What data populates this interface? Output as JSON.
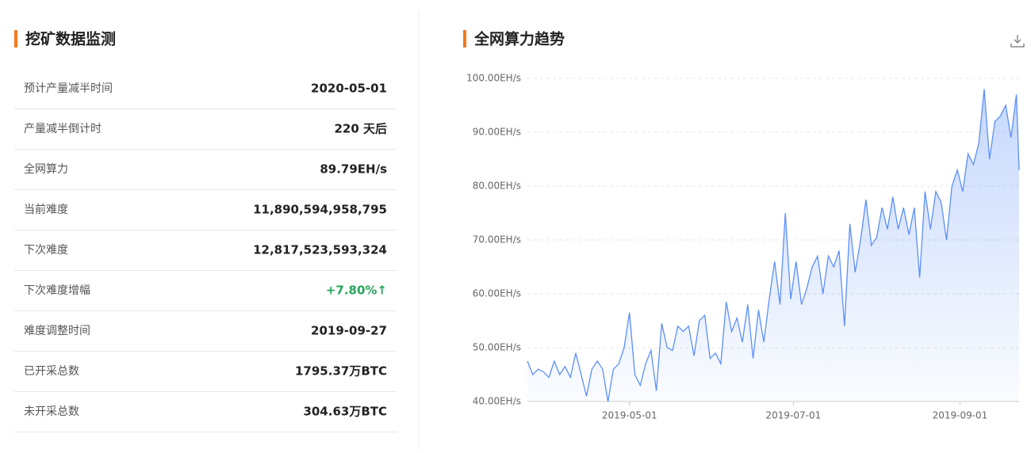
{
  "panel": {
    "title": "挖矿数据监测",
    "rows": [
      [
        "预计产量减半时间",
        "2020-05-01"
      ],
      [
        "产量减半倒计时",
        "220 天后"
      ],
      [
        "全网算力",
        "89.79EH/s"
      ],
      [
        "当前难度",
        "11,890,594,958,795"
      ],
      [
        "下次难度",
        "12,817,523,593,324"
      ],
      [
        "下次难度增幅",
        "+7.80%↑"
      ],
      [
        "难度调整时间",
        "2019-09-27"
      ],
      [
        "已开采总数",
        "1795.37万BTC"
      ],
      [
        "未开采总数",
        "304.63万BTC"
      ]
    ]
  },
  "chart_data": {
    "type": "area",
    "title": "全网算力趋势",
    "color": "#5b8ff9",
    "grid": true,
    "x": [
      "2019-03-24",
      "2019-03-26",
      "2019-03-28",
      "2019-03-30",
      "2019-04-01",
      "2019-04-03",
      "2019-04-05",
      "2019-04-07",
      "2019-04-09",
      "2019-04-11",
      "2019-04-13",
      "2019-04-15",
      "2019-04-17",
      "2019-04-19",
      "2019-04-21",
      "2019-04-23",
      "2019-04-25",
      "2019-04-27",
      "2019-04-29",
      "2019-05-01",
      "2019-05-03",
      "2019-05-05",
      "2019-05-07",
      "2019-05-09",
      "2019-05-11",
      "2019-05-13",
      "2019-05-15",
      "2019-05-17",
      "2019-05-19",
      "2019-05-21",
      "2019-05-23",
      "2019-05-25",
      "2019-05-27",
      "2019-05-29",
      "2019-05-31",
      "2019-06-02",
      "2019-06-04",
      "2019-06-06",
      "2019-06-08",
      "2019-06-10",
      "2019-06-12",
      "2019-06-14",
      "2019-06-16",
      "2019-06-18",
      "2019-06-20",
      "2019-06-22",
      "2019-06-24",
      "2019-06-26",
      "2019-06-28",
      "2019-06-30",
      "2019-07-02",
      "2019-07-04",
      "2019-07-06",
      "2019-07-08",
      "2019-07-10",
      "2019-07-12",
      "2019-07-14",
      "2019-07-16",
      "2019-07-18",
      "2019-07-20",
      "2019-07-22",
      "2019-07-24",
      "2019-07-26",
      "2019-07-28",
      "2019-07-30",
      "2019-08-01",
      "2019-08-03",
      "2019-08-05",
      "2019-08-07",
      "2019-08-09",
      "2019-08-11",
      "2019-08-13",
      "2019-08-15",
      "2019-08-17",
      "2019-08-19",
      "2019-08-21",
      "2019-08-23",
      "2019-08-25",
      "2019-08-27",
      "2019-08-29",
      "2019-08-31",
      "2019-09-02",
      "2019-09-04",
      "2019-09-06",
      "2019-09-08",
      "2019-09-10",
      "2019-09-12",
      "2019-09-14",
      "2019-09-16",
      "2019-09-18",
      "2019-09-20",
      "2019-09-22",
      "2019-09-23"
    ],
    "values": [
      47.5,
      45,
      46,
      45.5,
      44.5,
      47.5,
      45,
      46.5,
      44.5,
      49,
      45,
      41,
      46,
      47.5,
      46,
      40,
      46,
      47,
      50,
      56.5,
      45,
      43,
      47,
      49.5,
      42,
      54.5,
      50,
      49.5,
      54,
      53,
      54,
      48.5,
      55,
      56,
      48,
      49,
      47,
      58.5,
      53,
      55.5,
      51,
      58,
      48,
      57,
      51,
      59,
      66,
      58,
      75,
      59,
      66,
      58,
      61,
      65,
      67,
      60,
      67,
      65,
      68,
      54,
      73,
      64,
      70,
      77.5,
      69,
      70.5,
      76,
      72,
      78,
      72,
      76,
      71,
      76,
      63,
      79,
      72,
      79,
      77,
      70,
      80,
      83,
      79,
      86,
      84,
      88,
      98,
      85,
      92,
      93,
      95,
      89,
      97,
      83
    ],
    "xlim": [
      "2019-03-24",
      "2019-09-23"
    ],
    "xticks": [
      "2019-05-01",
      "2019-07-01",
      "2019-09-01"
    ],
    "ylim": [
      40,
      100
    ],
    "yticks": [
      {
        "value": 40,
        "label": "40.00EH/s"
      },
      {
        "value": 50,
        "label": "50.00EH/s"
      },
      {
        "value": 60,
        "label": "60.00EH/s"
      },
      {
        "value": 70,
        "label": "70.00EH/s"
      },
      {
        "value": 80,
        "label": "80.00EH/s"
      },
      {
        "value": 90,
        "label": "90.00EH/s"
      },
      {
        "value": 100,
        "label": "100.00EH/s"
      }
    ]
  }
}
